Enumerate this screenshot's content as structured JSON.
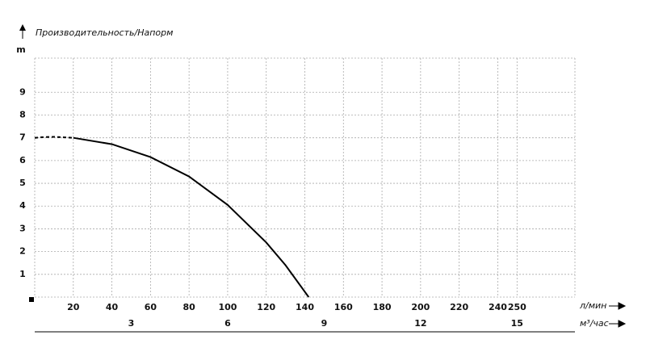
{
  "chart_data": {
    "type": "line",
    "title": "Производительность/Напорм",
    "y_label": "m",
    "x_label": "л/мин",
    "x2_label": "м³/час",
    "xlim": [
      0,
      280
    ],
    "xticks": [
      20,
      40,
      60,
      80,
      100,
      120,
      140,
      160,
      180,
      200,
      220,
      240,
      250
    ],
    "x2lim": [
      0,
      16.8
    ],
    "x2ticks": [
      3,
      6,
      9,
      12,
      15
    ],
    "ylim": [
      0,
      10.5
    ],
    "yticks": [
      1,
      2,
      3,
      4,
      5,
      6,
      7,
      8,
      9
    ],
    "grid": true,
    "color": "#000000",
    "segments": [
      {
        "dashed": true,
        "x": [
          0,
          5,
          10,
          15,
          20
        ],
        "values": [
          7,
          7.03,
          7.04,
          7.02,
          7
        ]
      },
      {
        "dashed": false,
        "x": [
          20,
          40,
          60,
          80,
          100,
          120,
          130,
          142
        ],
        "values": [
          7,
          6.72,
          6.15,
          5.3,
          4.05,
          2.4,
          1.4,
          0
        ]
      }
    ]
  }
}
